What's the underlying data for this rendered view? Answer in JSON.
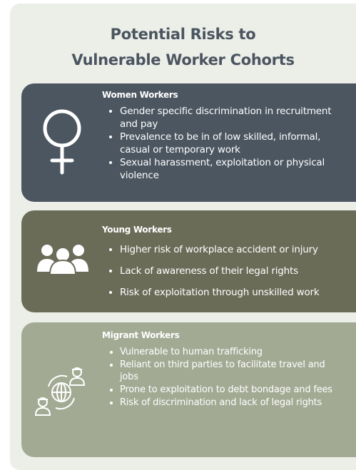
{
  "title": [
    "Potential Risks to",
    "Vulnerable Worker Cohorts"
  ],
  "sections": [
    {
      "heading": "Women Workers",
      "items": [
        "Gender specific discrimination in recruitment and pay",
        "Prevalence to be in of low skilled, informal, casual or temporary work",
        "Sexual harassment, exploitation or physical violence"
      ]
    },
    {
      "heading": "Young Workers",
      "items": [
        "Higher risk of workplace accident or injury",
        "Lack of awareness of their legal rights",
        "Risk of exploitation through unskilled work"
      ]
    },
    {
      "heading": "Migrant Workers",
      "items": [
        "Vulnerable to human trafficking",
        "Reliant on third parties to facilitate travel and jobs",
        "Prone to exploitation to debt bondage and fees",
        "Risk of discrimination and lack of legal rights"
      ]
    }
  ]
}
